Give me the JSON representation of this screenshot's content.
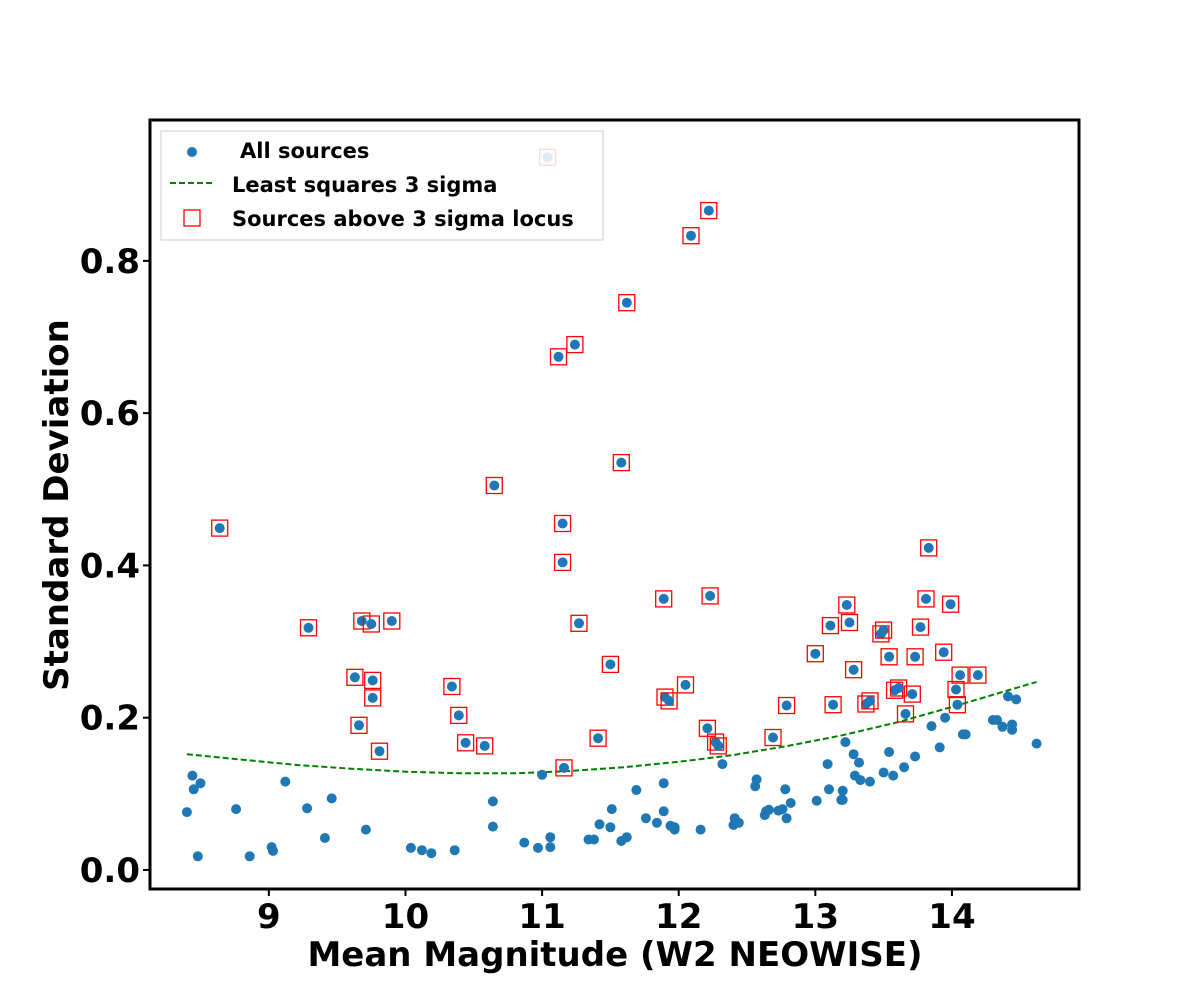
{
  "chart_data": {
    "type": "scatter",
    "title": "",
    "xlabel": "Mean Magnitude (W2 NEOWISE)",
    "ylabel": "Standard Deviation",
    "xlim": [
      8.13,
      14.93
    ],
    "ylim": [
      -0.025,
      0.985
    ],
    "xticks": [
      9,
      10,
      11,
      12,
      13,
      14
    ],
    "yticks": [
      0.0,
      0.2,
      0.4,
      0.6,
      0.8
    ],
    "ytick_labels": [
      "0.0",
      "0.2",
      "0.4",
      "0.6",
      "0.8"
    ],
    "grid": false,
    "legend_position": "top-left",
    "legend": {
      "all_sources": "All sources",
      "fit": "Least squares 3 sigma",
      "above": "Sources above 3 sigma locus"
    },
    "colors": {
      "points": "#1f77b4",
      "fit": "#008000",
      "markers": "#ff0000",
      "frame": "#000000"
    },
    "series": [
      {
        "name": "All sources",
        "kind": "points",
        "x": [
          8.4,
          8.44,
          8.45,
          8.48,
          8.5,
          8.76,
          8.86,
          9.02,
          9.03,
          9.12,
          9.28,
          9.41,
          9.46,
          9.71,
          10.04,
          10.12,
          10.19,
          10.36,
          10.64,
          10.64,
          10.87,
          10.97,
          11.06,
          11.06,
          11.0,
          11.34,
          11.38,
          11.42,
          11.5,
          11.51,
          11.58,
          11.62,
          11.69,
          11.76,
          11.84,
          11.89,
          11.89,
          11.94,
          11.97,
          11.97,
          12.16,
          12.32,
          12.4,
          12.41,
          12.44,
          12.56,
          12.57,
          12.63,
          12.64,
          12.66,
          12.73,
          12.76,
          12.78,
          12.79,
          12.82,
          13.01,
          13.09,
          13.1,
          13.19,
          13.2,
          13.2,
          13.22,
          13.28,
          13.29,
          13.32,
          13.33,
          13.4,
          13.5,
          13.54,
          13.57,
          13.65,
          13.73,
          13.85,
          13.91,
          13.95,
          14.08,
          14.1,
          14.3,
          14.33,
          14.37,
          14.41,
          14.44,
          14.44,
          14.47,
          14.62
        ],
        "y": [
          0.076,
          0.124,
          0.106,
          0.018,
          0.114,
          0.08,
          0.018,
          0.03,
          0.025,
          0.116,
          0.081,
          0.042,
          0.094,
          0.053,
          0.029,
          0.026,
          0.022,
          0.026,
          0.09,
          0.057,
          0.036,
          0.029,
          0.03,
          0.043,
          0.125,
          0.04,
          0.04,
          0.06,
          0.056,
          0.08,
          0.038,
          0.043,
          0.105,
          0.068,
          0.062,
          0.114,
          0.077,
          0.058,
          0.053,
          0.056,
          0.053,
          0.139,
          0.059,
          0.068,
          0.062,
          0.11,
          0.119,
          0.072,
          0.077,
          0.079,
          0.078,
          0.08,
          0.106,
          0.068,
          0.088,
          0.091,
          0.139,
          0.106,
          0.092,
          0.104,
          0.092,
          0.168,
          0.152,
          0.124,
          0.141,
          0.118,
          0.116,
          0.128,
          0.155,
          0.124,
          0.135,
          0.149,
          0.189,
          0.161,
          0.2,
          0.178,
          0.178,
          0.197,
          0.197,
          0.188,
          0.228,
          0.191,
          0.184,
          0.224,
          0.166
        ]
      },
      {
        "name": "Sources above 3 sigma locus",
        "kind": "boxed-points",
        "x": [
          8.64,
          9.29,
          9.63,
          9.66,
          9.68,
          9.75,
          9.76,
          9.76,
          9.81,
          9.9,
          10.34,
          10.39,
          10.44,
          10.58,
          10.65,
          11.04,
          11.12,
          11.15,
          11.15,
          11.16,
          11.24,
          11.27,
          11.41,
          11.5,
          11.58,
          11.62,
          11.89,
          11.9,
          11.93,
          12.05,
          12.09,
          12.21,
          12.22,
          12.23,
          12.27,
          12.29,
          12.69,
          12.79,
          13.0,
          13.11,
          13.13,
          13.23,
          13.25,
          13.28,
          13.37,
          13.4,
          13.48,
          13.5,
          13.54,
          13.58,
          13.61,
          13.66,
          13.71,
          13.73,
          13.77,
          13.81,
          13.83,
          13.94,
          13.99,
          14.03,
          14.04,
          14.06,
          14.19
        ],
        "y": [
          0.449,
          0.318,
          0.253,
          0.19,
          0.327,
          0.323,
          0.249,
          0.226,
          0.156,
          0.327,
          0.241,
          0.203,
          0.167,
          0.163,
          0.505,
          0.936,
          0.674,
          0.455,
          0.404,
          0.134,
          0.69,
          0.324,
          0.173,
          0.27,
          0.535,
          0.745,
          0.356,
          0.227,
          0.222,
          0.243,
          0.833,
          0.186,
          0.866,
          0.36,
          0.168,
          0.163,
          0.174,
          0.216,
          0.284,
          0.321,
          0.217,
          0.348,
          0.325,
          0.263,
          0.218,
          0.222,
          0.31,
          0.315,
          0.28,
          0.236,
          0.239,
          0.205,
          0.231,
          0.28,
          0.319,
          0.356,
          0.423,
          0.286,
          0.349,
          0.237,
          0.217,
          0.256,
          0.256
        ]
      },
      {
        "name": "Least squares 3 sigma",
        "kind": "dashed-line",
        "x": [
          8.4,
          8.8,
          9.2,
          9.6,
          10.0,
          10.4,
          10.8,
          11.2,
          11.6,
          12.0,
          12.4,
          12.8,
          13.2,
          13.6,
          14.0,
          14.3,
          14.62
        ],
        "y": [
          0.152,
          0.145,
          0.138,
          0.133,
          0.129,
          0.127,
          0.127,
          0.13,
          0.135,
          0.142,
          0.151,
          0.163,
          0.177,
          0.194,
          0.214,
          0.23,
          0.247
        ]
      }
    ]
  }
}
